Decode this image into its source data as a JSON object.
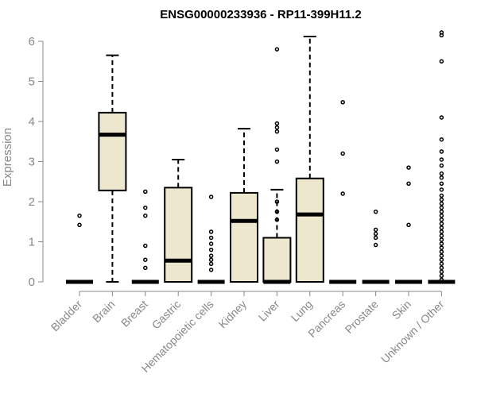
{
  "chart_data": {
    "type": "boxplot",
    "title": "ENSG00000233936 - RP11-399H11.2",
    "xlabel": "",
    "ylabel": "Expression",
    "ylim": [
      0,
      6.2
    ],
    "yticks": [
      0,
      1,
      2,
      3,
      4,
      5,
      6
    ],
    "box_fill": "#EDE7CE",
    "categories": [
      "Bladder",
      "Brain",
      "Breast",
      "Gastric",
      "Hematopoietic cells",
      "Kidney",
      "Liver",
      "Lung",
      "Pancreas",
      "Prostate",
      "Skin",
      "Unknown / Other"
    ],
    "series": [
      {
        "name": "Bladder",
        "min": 0,
        "q1": 0,
        "median": 0,
        "q3": 0,
        "max": 0,
        "outliers": [
          1.42,
          1.65
        ]
      },
      {
        "name": "Brain",
        "min": 0,
        "q1": 2.28,
        "median": 3.67,
        "q3": 4.22,
        "max": 5.65,
        "outliers": []
      },
      {
        "name": "Breast",
        "min": 0,
        "q1": 0,
        "median": 0,
        "q3": 0,
        "max": 0,
        "outliers": [
          0.35,
          0.55,
          0.9,
          1.65,
          1.85,
          2.25
        ]
      },
      {
        "name": "Gastric",
        "min": 0,
        "q1": 0,
        "median": 0.53,
        "q3": 2.35,
        "max": 3.05,
        "outliers": []
      },
      {
        "name": "Hematopoietic cells",
        "min": 0,
        "q1": 0,
        "median": 0,
        "q3": 0,
        "max": 0,
        "outliers": [
          0.3,
          0.45,
          0.55,
          0.65,
          0.8,
          0.95,
          1.1,
          1.25,
          2.12
        ]
      },
      {
        "name": "Kidney",
        "min": 0,
        "q1": 0,
        "median": 1.52,
        "q3": 2.22,
        "max": 3.82,
        "outliers": []
      },
      {
        "name": "Liver",
        "min": 0,
        "q1": 0,
        "median": 0,
        "q3": 1.1,
        "max": 2.3,
        "outliers": [
          1.55,
          1.75,
          2.0,
          3.0,
          3.3,
          3.75,
          3.85,
          3.95,
          5.8
        ]
      },
      {
        "name": "Lung",
        "min": 0,
        "q1": 0,
        "median": 1.68,
        "q3": 2.58,
        "max": 6.12,
        "outliers": []
      },
      {
        "name": "Pancreas",
        "min": 0,
        "q1": 0,
        "median": 0,
        "q3": 0,
        "max": 0,
        "outliers": [
          2.2,
          3.2,
          4.48
        ]
      },
      {
        "name": "Prostate",
        "min": 0,
        "q1": 0,
        "median": 0,
        "q3": 0,
        "max": 0,
        "outliers": [
          0.92,
          1.1,
          1.2,
          1.3,
          1.75
        ]
      },
      {
        "name": "Skin",
        "min": 0,
        "q1": 0,
        "median": 0,
        "q3": 0,
        "max": 0,
        "outliers": [
          1.42,
          2.45,
          2.85
        ]
      },
      {
        "name": "Unknown / Other",
        "min": 0,
        "q1": 0,
        "median": 0,
        "q3": 0,
        "max": 0,
        "outliers": [
          0.05,
          0.15,
          0.25,
          0.35,
          0.45,
          0.55,
          0.65,
          0.75,
          0.85,
          0.95,
          1.05,
          1.15,
          1.25,
          1.35,
          1.45,
          1.55,
          1.65,
          1.75,
          1.85,
          1.95,
          2.05,
          2.15,
          2.3,
          2.45,
          2.6,
          2.7,
          2.9,
          3.05,
          3.25,
          3.55,
          4.1,
          5.5,
          6.15,
          6.22
        ]
      }
    ]
  }
}
